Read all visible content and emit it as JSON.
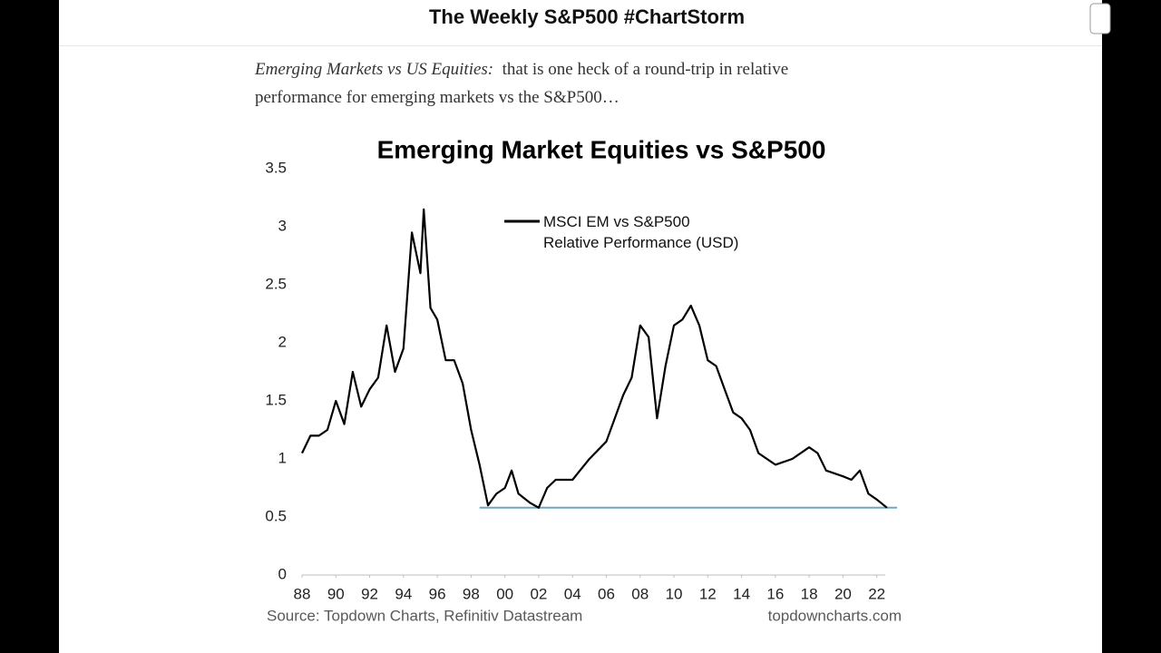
{
  "header": {
    "title": "The Weekly S&P500 #ChartStorm"
  },
  "body": {
    "intro_label": "Emerging Markets vs US Equities:",
    "intro_text": "that is one heck of a round-trip in relative performance for emerging markets vs the S&P500…"
  },
  "chart_data": {
    "type": "line",
    "title": "Emerging Market Equities vs S&P500",
    "x": [
      1988,
      1988.5,
      1989,
      1989.5,
      1990,
      1990.5,
      1991,
      1991.5,
      1992,
      1992.5,
      1993,
      1993.5,
      1994,
      1994.5,
      1995,
      1995.2,
      1995.6,
      1996,
      1996.5,
      1997,
      1997.5,
      1998,
      1998.5,
      1999,
      1999.5,
      2000,
      2000.4,
      2000.8,
      2001.5,
      2002,
      2002.5,
      2003,
      2004,
      2005,
      2006,
      2006.5,
      2007,
      2007.5,
      2008,
      2008.5,
      2009,
      2009.5,
      2010,
      2010.5,
      2011,
      2011.5,
      2012,
      2012.5,
      2013,
      2013.5,
      2014,
      2014.5,
      2015,
      2016,
      2017,
      2018,
      2018.5,
      2019,
      2020,
      2020.5,
      2021,
      2021.5,
      2022,
      2022.6
    ],
    "series": [
      {
        "name": "MSCI EM vs S&P500\nRelative Performance (USD)",
        "color": "#000000",
        "values": [
          1.05,
          1.2,
          1.2,
          1.25,
          1.5,
          1.3,
          1.75,
          1.45,
          1.6,
          1.7,
          2.15,
          1.75,
          1.95,
          2.95,
          2.6,
          3.15,
          2.3,
          2.2,
          1.85,
          1.85,
          1.65,
          1.25,
          0.95,
          0.6,
          0.7,
          0.75,
          0.9,
          0.7,
          0.62,
          0.58,
          0.75,
          0.82,
          0.82,
          1.0,
          1.15,
          1.35,
          1.55,
          1.7,
          2.15,
          2.05,
          1.35,
          1.8,
          2.15,
          2.2,
          2.32,
          2.15,
          1.85,
          1.8,
          1.6,
          1.4,
          1.35,
          1.25,
          1.05,
          0.95,
          1.0,
          1.1,
          1.05,
          0.9,
          0.85,
          0.82,
          0.9,
          0.7,
          0.65,
          0.58
        ]
      }
    ],
    "reference_line": {
      "value": 0.58,
      "x": [
        1998.5,
        2023.2
      ],
      "color": "#6aa8c8"
    },
    "xlim": [
      1988,
      2022.5
    ],
    "xticks": [
      {
        "value": 1988,
        "label": "88"
      },
      {
        "value": 1990,
        "label": "90"
      },
      {
        "value": 1992,
        "label": "92"
      },
      {
        "value": 1994,
        "label": "94"
      },
      {
        "value": 1996,
        "label": "96"
      },
      {
        "value": 1998,
        "label": "98"
      },
      {
        "value": 2000,
        "label": "00"
      },
      {
        "value": 2002,
        "label": "02"
      },
      {
        "value": 2004,
        "label": "04"
      },
      {
        "value": 2006,
        "label": "06"
      },
      {
        "value": 2008,
        "label": "08"
      },
      {
        "value": 2010,
        "label": "10"
      },
      {
        "value": 2012,
        "label": "12"
      },
      {
        "value": 2014,
        "label": "14"
      },
      {
        "value": 2016,
        "label": "16"
      },
      {
        "value": 2018,
        "label": "18"
      },
      {
        "value": 2020,
        "label": "20"
      },
      {
        "value": 2022,
        "label": "22"
      }
    ],
    "ylim": [
      0,
      3.5
    ],
    "yticks": [
      0,
      0.5,
      1,
      1.5,
      2,
      2.5,
      3,
      3.5
    ],
    "grid": false,
    "source": "Source: Topdown Charts, Refinitiv Datastream",
    "website": "topdowncharts.com"
  }
}
